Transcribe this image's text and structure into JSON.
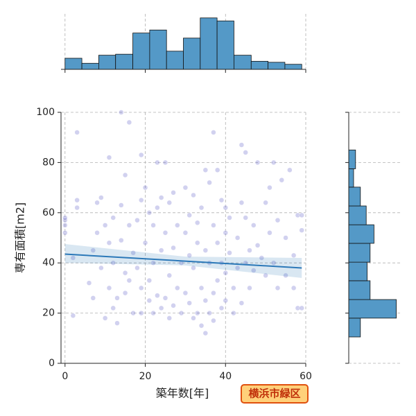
{
  "chart_data": [
    {
      "type": "scatter",
      "xlabel": "築年数[年]",
      "ylabel": "専有面積[m2]",
      "annotation": "横浜市緑区",
      "xlim": [
        -1,
        60
      ],
      "ylim": [
        0,
        100
      ],
      "xticks": [
        0,
        20,
        40,
        60
      ],
      "yticks": [
        0,
        20,
        40,
        60,
        80,
        100
      ],
      "grid": true,
      "color": "#4646c0",
      "x": [
        0,
        0,
        0,
        0,
        2,
        2,
        3,
        3,
        3,
        6,
        7,
        7,
        8,
        8,
        9,
        9,
        10,
        10,
        11,
        11,
        11,
        12,
        12,
        12,
        13,
        13,
        14,
        14,
        14,
        15,
        15,
        15,
        16,
        16,
        16,
        17,
        17,
        18,
        18,
        19,
        19,
        19,
        19,
        20,
        20,
        21,
        21,
        21,
        22,
        22,
        22,
        23,
        23,
        23,
        24,
        24,
        24,
        25,
        25,
        25,
        26,
        26,
        26,
        27,
        27,
        27,
        28,
        28,
        29,
        29,
        30,
        30,
        30,
        31,
        31,
        31,
        32,
        32,
        32,
        33,
        33,
        33,
        34,
        34,
        34,
        35,
        35,
        35,
        35,
        36,
        36,
        36,
        37,
        37,
        37,
        37,
        38,
        38,
        38,
        39,
        39,
        39,
        40,
        40,
        40,
        40,
        41,
        41,
        42,
        42,
        43,
        43,
        44,
        44,
        44,
        45,
        45,
        45,
        46,
        46,
        47,
        47,
        48,
        48,
        49,
        50,
        50,
        51,
        51,
        52,
        52,
        53,
        53,
        54,
        55,
        55,
        56,
        57,
        57,
        58,
        58,
        59,
        59,
        59
      ],
      "y": [
        57,
        55,
        52,
        58,
        19,
        42,
        92,
        65,
        62,
        32,
        26,
        45,
        64,
        52,
        66,
        38,
        55,
        18,
        82,
        48,
        30,
        58,
        22,
        40,
        16,
        26,
        100,
        63,
        49,
        75,
        36,
        28,
        96,
        33,
        55,
        20,
        44,
        57,
        38,
        83,
        65,
        20,
        30,
        70,
        48,
        60,
        25,
        33,
        55,
        20,
        40,
        80,
        62,
        27,
        66,
        45,
        22,
        80,
        52,
        26,
        64,
        35,
        18,
        68,
        46,
        23,
        55,
        30,
        40,
        20,
        70,
        52,
        28,
        59,
        43,
        24,
        67,
        38,
        18,
        56,
        48,
        20,
        62,
        30,
        15,
        77,
        45,
        25,
        12,
        72,
        40,
        20,
        92,
        55,
        28,
        17,
        77,
        48,
        33,
        65,
        40,
        22,
        62,
        52,
        36,
        25,
        58,
        44,
        30,
        20,
        50,
        38,
        87,
        64,
        24,
        84,
        58,
        40,
        45,
        30,
        55,
        37,
        80,
        47,
        42,
        64,
        35,
        70,
        52,
        80,
        40,
        57,
        30,
        73,
        50,
        35,
        77,
        43,
        30,
        59,
        22,
        59,
        53,
        22
      ],
      "regression": {
        "color": "#2b78b8",
        "x": [
          0,
          59
        ],
        "y": [
          43.5,
          38
        ],
        "ci_x": [
          0,
          30,
          59
        ],
        "ci_lower": [
          40,
          39,
          34
        ],
        "ci_upper": [
          47.5,
          42.5,
          42
        ]
      }
    },
    {
      "type": "histogram",
      "orientation": "vertical",
      "color": "#5499c7",
      "bins": [
        0,
        4.2,
        8.4,
        12.6,
        16.9,
        21.1,
        25.3,
        29.5,
        33.7,
        37.9,
        42.1,
        46.4,
        50.6,
        54.8,
        59
      ],
      "values": [
        11,
        6,
        14,
        15,
        36,
        39,
        18,
        31,
        51,
        48,
        14,
        8,
        7,
        5
      ],
      "ylim": [
        0,
        55
      ]
    },
    {
      "type": "histogram",
      "orientation": "horizontal",
      "color": "#5499c7",
      "bins": [
        10.5,
        18,
        25.4,
        32.9,
        40.3,
        47.8,
        55.2,
        62.7,
        70.2,
        77.5,
        85
      ],
      "values": [
        12,
        49,
        22,
        19,
        22,
        26,
        18,
        12,
        5,
        7
      ],
      "xlim": [
        0,
        55
      ]
    }
  ]
}
